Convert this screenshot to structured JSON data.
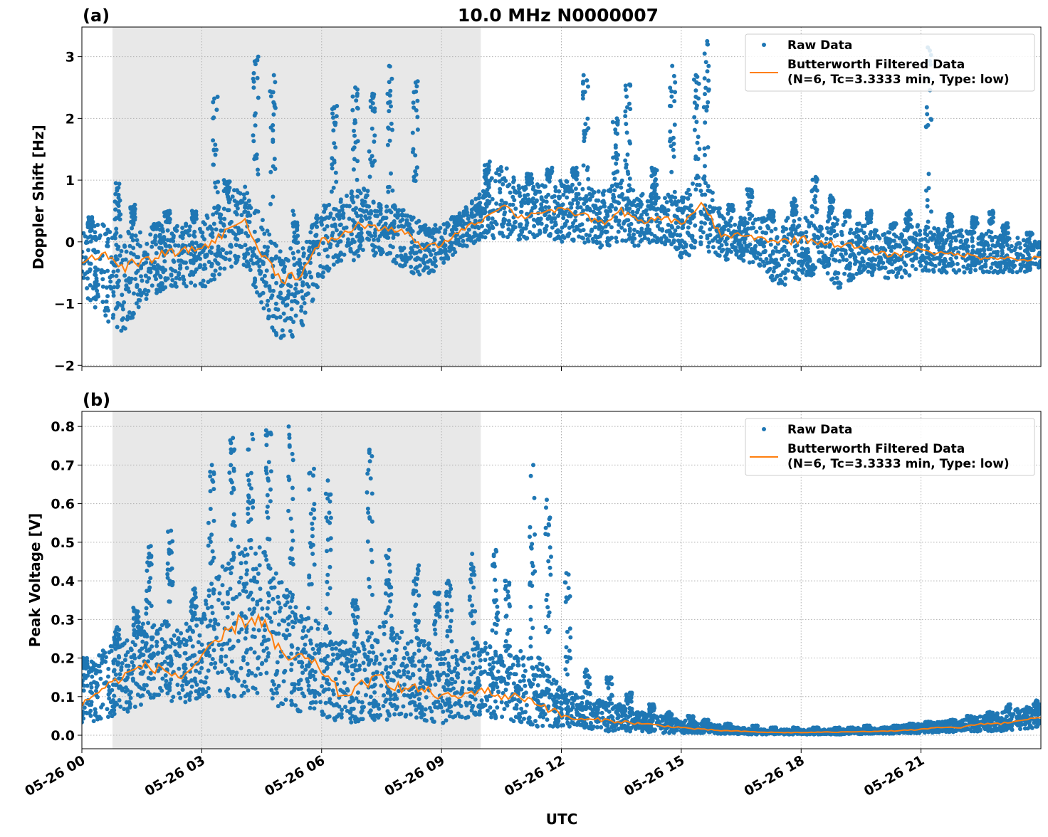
{
  "figure": {
    "title": "10.0 MHz N0000007",
    "xlabel": "UTC",
    "x_tick_labels": [
      "05-26 00",
      "05-26 03",
      "05-26 06",
      "05-26 09",
      "05-26 12",
      "05-26 15",
      "05-26 18",
      "05-26 21"
    ],
    "x_tick_times": [
      "00:00",
      "03:00",
      "06:00",
      "09:00",
      "12:00",
      "15:00",
      "18:00",
      "21:00"
    ],
    "xlim": [
      "00:00",
      "24:00"
    ],
    "shaded_span": [
      "00:46",
      "09:59"
    ],
    "colors": {
      "raw": "#1f77b4",
      "filtered": "#ff7f0e",
      "shade": "#e8e8e8",
      "grid": "#b0b0b0"
    },
    "grid": true,
    "legend": {
      "raw": "Raw Data",
      "filtered_line1": "Butterworth Filtered Data",
      "filtered_line2": "(N=6, Tc=3.3333 min, Type: low)",
      "placement": "upper-right"
    }
  },
  "chart_data": [
    {
      "type": "scatter+line",
      "panel_label": "(a)",
      "ylabel": "Doppler Shift [Hz]",
      "ylim": [
        -2.02,
        3.48
      ],
      "y_ticks": [
        -2,
        -1,
        0,
        1,
        2,
        3
      ],
      "y_tick_labels": [
        "−2",
        "−1",
        "0",
        "1",
        "2",
        "3"
      ],
      "times": [
        "00:00",
        "00:30",
        "01:00",
        "01:30",
        "02:00",
        "02:30",
        "03:00",
        "03:30",
        "04:00",
        "04:30",
        "05:00",
        "05:30",
        "06:00",
        "06:30",
        "07:00",
        "07:30",
        "08:00",
        "08:30",
        "09:00",
        "09:30",
        "10:00",
        "10:30",
        "11:00",
        "11:30",
        "12:00",
        "12:30",
        "13:00",
        "13:30",
        "14:00",
        "14:30",
        "15:00",
        "15:30",
        "16:00",
        "16:30",
        "17:00",
        "17:30",
        "18:00",
        "18:30",
        "19:00",
        "19:30",
        "20:00",
        "20:30",
        "21:00",
        "21:30",
        "22:00",
        "22:30",
        "23:00",
        "23:30",
        "24:00"
      ],
      "series": [
        {
          "name": "Butterworth Filtered Data",
          "values": [
            -0.3,
            -0.2,
            -0.4,
            -0.35,
            -0.2,
            -0.15,
            -0.1,
            0.1,
            0.4,
            -0.2,
            -0.6,
            -0.5,
            0.0,
            0.1,
            0.3,
            0.2,
            0.2,
            -0.1,
            -0.05,
            0.2,
            0.35,
            0.6,
            0.4,
            0.5,
            0.5,
            0.45,
            0.3,
            0.5,
            0.3,
            0.4,
            0.3,
            0.6,
            0.1,
            0.1,
            0.05,
            0.0,
            0.05,
            0.0,
            -0.05,
            -0.1,
            -0.2,
            -0.2,
            -0.1,
            -0.2,
            -0.2,
            -0.25,
            -0.25,
            -0.3,
            -0.25
          ]
        },
        {
          "name": "Raw Data",
          "low": [
            -0.8,
            -1.2,
            -1.5,
            -1.0,
            -0.8,
            -0.7,
            -0.8,
            -0.5,
            -0.3,
            -1.0,
            -1.75,
            -1.4,
            -0.6,
            -0.3,
            -0.3,
            -0.2,
            -0.4,
            -0.6,
            -0.4,
            -0.1,
            0.0,
            0.1,
            0.0,
            0.1,
            0.0,
            0.0,
            -0.1,
            0.0,
            -0.1,
            0.0,
            -0.3,
            -0.1,
            -0.3,
            -0.3,
            -0.4,
            -0.8,
            -0.6,
            -0.5,
            -0.8,
            -0.5,
            -0.6,
            -0.6,
            -0.5,
            -0.5,
            -0.5,
            -0.5,
            -0.5,
            -0.5,
            -0.45
          ],
          "high": [
            0.2,
            0.3,
            0.2,
            0.2,
            0.3,
            0.3,
            0.4,
            0.7,
            1.0,
            0.4,
            -0.1,
            -0.1,
            0.6,
            0.7,
            1.0,
            0.6,
            0.6,
            0.3,
            0.3,
            0.5,
            0.8,
            1.3,
            0.9,
            1.0,
            1.0,
            1.0,
            0.8,
            1.0,
            0.8,
            0.8,
            0.7,
            1.2,
            0.5,
            0.4,
            0.4,
            0.4,
            0.4,
            0.4,
            0.4,
            0.3,
            0.2,
            0.2,
            0.3,
            0.2,
            0.2,
            0.15,
            0.1,
            0.1,
            0.0
          ],
          "peak": [
            0.4,
            0.95,
            0.6,
            0.3,
            0.5,
            0.5,
            2.35,
            1.0,
            3.0,
            2.7,
            0.5,
            0.0,
            2.2,
            2.5,
            2.4,
            2.85,
            2.6,
            0.3,
            0.4,
            0.6,
            1.3,
            1.3,
            1.1,
            1.2,
            1.2,
            2.7,
            2.0,
            2.55,
            1.2,
            2.85,
            2.7,
            3.25,
            0.6,
            0.85,
            0.5,
            0.7,
            1.05,
            0.75,
            0.5,
            0.5,
            0.3,
            0.5,
            3.15,
            0.45,
            0.4,
            0.5,
            0.3,
            0.15,
            0.1
          ]
        }
      ]
    },
    {
      "type": "scatter+line",
      "panel_label": "(b)",
      "ylabel": "Peak Voltage [V]",
      "ylim": [
        -0.035,
        0.839
      ],
      "y_ticks": [
        0.0,
        0.1,
        0.2,
        0.3,
        0.4,
        0.5,
        0.6,
        0.7,
        0.8
      ],
      "y_tick_labels": [
        "0.0",
        "0.1",
        "0.2",
        "0.3",
        "0.4",
        "0.5",
        "0.6",
        "0.7",
        "0.8"
      ],
      "times": [
        "00:00",
        "00:30",
        "01:00",
        "01:30",
        "02:00",
        "02:30",
        "03:00",
        "03:30",
        "04:00",
        "04:30",
        "05:00",
        "05:30",
        "06:00",
        "06:30",
        "07:00",
        "07:30",
        "08:00",
        "08:30",
        "09:00",
        "09:30",
        "10:00",
        "10:30",
        "11:00",
        "11:30",
        "12:00",
        "12:30",
        "13:00",
        "13:30",
        "14:00",
        "14:30",
        "15:00",
        "15:30",
        "16:00",
        "16:30",
        "17:00",
        "17:30",
        "18:00",
        "18:30",
        "19:00",
        "19:30",
        "20:00",
        "20:30",
        "21:00",
        "21:30",
        "22:00",
        "22:30",
        "23:00",
        "23:30",
        "24:00"
      ],
      "series": [
        {
          "name": "Butterworth Filtered Data",
          "values": [
            0.08,
            0.12,
            0.15,
            0.18,
            0.17,
            0.15,
            0.2,
            0.25,
            0.3,
            0.3,
            0.2,
            0.2,
            0.17,
            0.1,
            0.13,
            0.15,
            0.12,
            0.12,
            0.1,
            0.1,
            0.12,
            0.1,
            0.1,
            0.08,
            0.05,
            0.04,
            0.04,
            0.035,
            0.03,
            0.025,
            0.02,
            0.015,
            0.012,
            0.01,
            0.008,
            0.007,
            0.007,
            0.008,
            0.008,
            0.01,
            0.01,
            0.012,
            0.015,
            0.02,
            0.02,
            0.03,
            0.03,
            0.04,
            0.045
          ]
        },
        {
          "name": "Raw Data",
          "low": [
            0.03,
            0.04,
            0.05,
            0.08,
            0.08,
            0.08,
            0.1,
            0.1,
            0.1,
            0.1,
            0.07,
            0.06,
            0.05,
            0.03,
            0.03,
            0.04,
            0.04,
            0.04,
            0.03,
            0.04,
            0.05,
            0.04,
            0.03,
            0.02,
            0.02,
            0.02,
            0.01,
            0.01,
            0.01,
            0.005,
            0.005,
            0.005,
            0.003,
            0.003,
            0.002,
            0.002,
            0.002,
            0.002,
            0.002,
            0.003,
            0.003,
            0.005,
            0.005,
            0.008,
            0.008,
            0.01,
            0.01,
            0.015,
            0.02
          ],
          "high": [
            0.17,
            0.22,
            0.25,
            0.3,
            0.3,
            0.3,
            0.35,
            0.45,
            0.5,
            0.5,
            0.4,
            0.35,
            0.3,
            0.25,
            0.25,
            0.3,
            0.27,
            0.25,
            0.22,
            0.22,
            0.25,
            0.22,
            0.22,
            0.2,
            0.12,
            0.1,
            0.09,
            0.08,
            0.06,
            0.05,
            0.04,
            0.035,
            0.025,
            0.02,
            0.015,
            0.015,
            0.015,
            0.015,
            0.015,
            0.02,
            0.02,
            0.025,
            0.03,
            0.035,
            0.04,
            0.05,
            0.06,
            0.07,
            0.08
          ],
          "peak": [
            0.2,
            0.28,
            0.33,
            0.49,
            0.53,
            0.38,
            0.7,
            0.77,
            0.78,
            0.79,
            0.8,
            0.69,
            0.66,
            0.35,
            0.74,
            0.48,
            0.44,
            0.37,
            0.4,
            0.47,
            0.48,
            0.4,
            0.7,
            0.61,
            0.42,
            0.17,
            0.15,
            0.11,
            0.08,
            0.06,
            0.05,
            0.04,
            0.03,
            0.025,
            0.02,
            0.02,
            0.02,
            0.02,
            0.02,
            0.025,
            0.025,
            0.03,
            0.035,
            0.04,
            0.05,
            0.06,
            0.08,
            0.09,
            0.09
          ]
        }
      ]
    }
  ]
}
